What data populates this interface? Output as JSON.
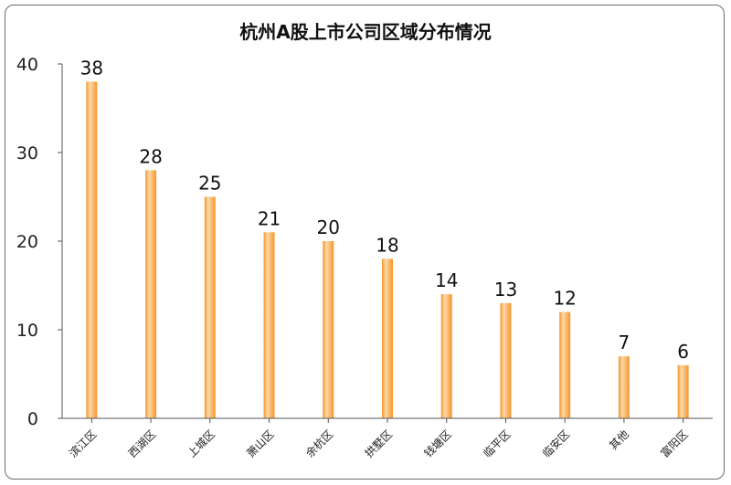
{
  "chart_data": {
    "type": "bar",
    "title": "杭州A股上市公司区域分布情况",
    "xlabel": "",
    "ylabel": "",
    "categories": [
      "滨江区",
      "西湖区",
      "上城区",
      "萧山区",
      "余杭区",
      "拱墅区",
      "钱塘区",
      "临平区",
      "临安区",
      "其他",
      "富阳区"
    ],
    "values": [
      38,
      28,
      25,
      21,
      20,
      18,
      14,
      13,
      12,
      7,
      6
    ],
    "ylim": [
      0,
      40
    ],
    "yticks": [
      0,
      10,
      20,
      30,
      40
    ],
    "grid": false,
    "legend": "none",
    "bar_color": "#f5962a",
    "bar_highlight": "#fdd9a8"
  }
}
